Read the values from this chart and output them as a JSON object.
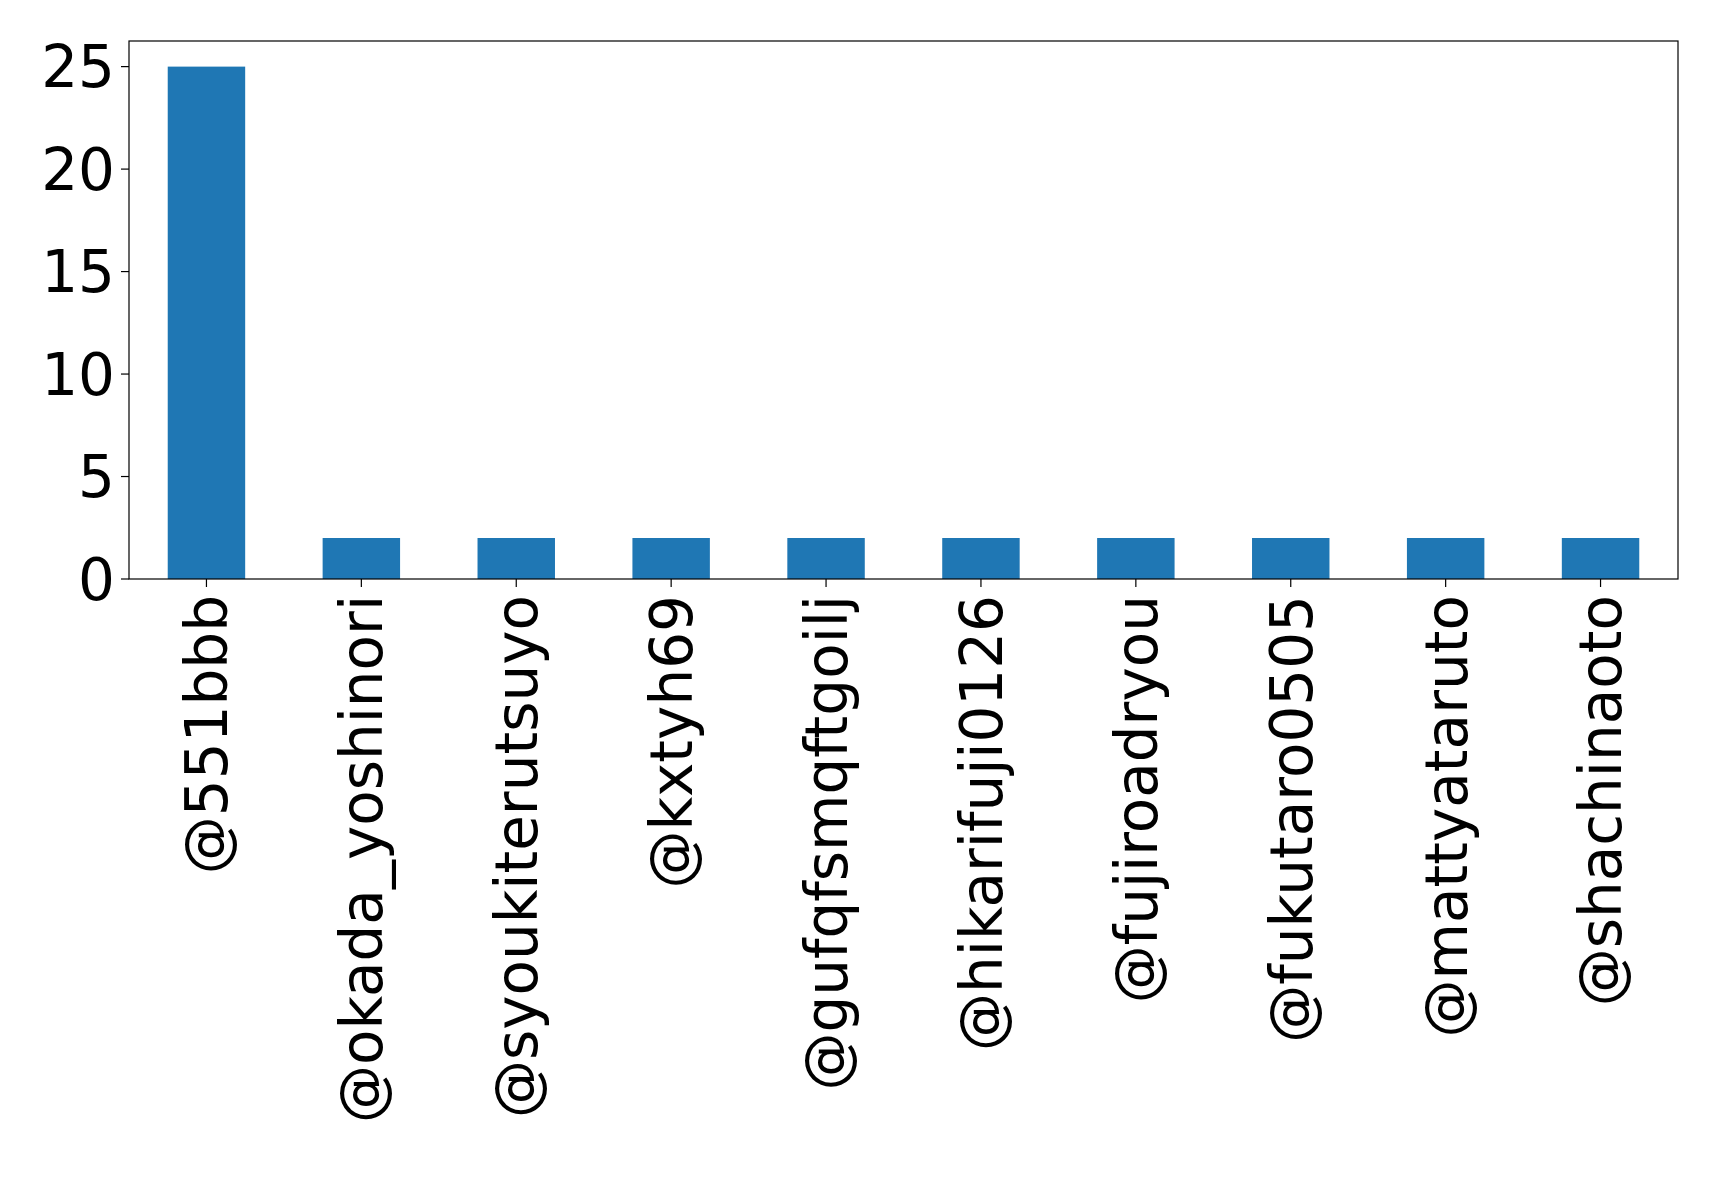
{
  "chart_data": {
    "type": "bar",
    "categories": [
      "@551bbb",
      "@okada_yoshinori",
      "@syoukiterutsuyo",
      "@kxtyh69",
      "@gufqfsmqftgoilj",
      "@hikarifuji0126",
      "@fujiroadryou",
      "@fukutaro0505",
      "@mattyataruto",
      "@shachinaoto"
    ],
    "values": [
      25,
      2,
      2,
      2,
      2,
      2,
      2,
      2,
      2,
      2
    ],
    "color": "#1f77b4",
    "ylim": [
      0,
      26.25
    ],
    "yticks": [
      0,
      5,
      10,
      15,
      20,
      25
    ]
  }
}
